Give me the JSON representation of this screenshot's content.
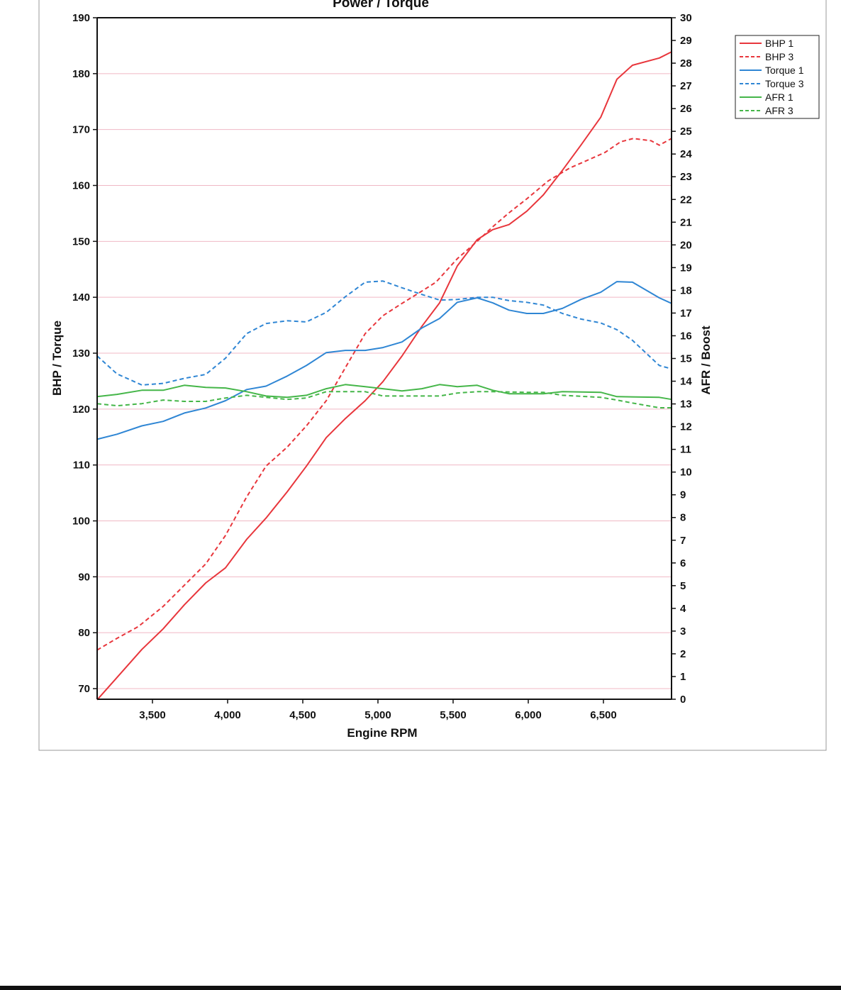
{
  "chart_data": {
    "type": "line",
    "title": "Power / Torque",
    "xlabel": "Engine RPM",
    "ylabel": "BHP / Torque",
    "y2label": "AFR / Boost",
    "xlim": [
      3132,
      6953
    ],
    "ylim": [
      68.1,
      190
    ],
    "y2lim": [
      0,
      30
    ],
    "xticks": [
      3500,
      4000,
      4500,
      5000,
      5500,
      6000,
      6500
    ],
    "xtick_labels": [
      "3,500",
      "4,000",
      "4,500",
      "5,000",
      "5,500",
      "6,000",
      "6,500"
    ],
    "yticks": [
      70,
      80,
      90,
      100,
      110,
      120,
      130,
      140,
      150,
      160,
      170,
      180,
      190
    ],
    "y2ticks": [
      0,
      1,
      2,
      3,
      4,
      5,
      6,
      7,
      8,
      9,
      10,
      11,
      12,
      13,
      14,
      15,
      16,
      17,
      18,
      19,
      20,
      21,
      22,
      23,
      24,
      25,
      26,
      27,
      28,
      29,
      30
    ],
    "grid": true,
    "legend_position": "right",
    "series": [
      {
        "name": "BHP 1",
        "axis": "left",
        "color": "#e8363c",
        "dashed": false,
        "x": [
          3132,
          3264,
          3429,
          3571,
          3712,
          3854,
          3986,
          4127,
          4255,
          4396,
          4524,
          4656,
          4783,
          4915,
          5033,
          5160,
          5292,
          5410,
          5528,
          5660,
          5764,
          5872,
          5990,
          6100,
          6227,
          6350,
          6482,
          6590,
          6693,
          6872,
          6953
        ],
        "y": [
          68.0,
          72.0,
          77.0,
          80.7,
          85.0,
          88.9,
          91.6,
          96.7,
          100.5,
          105.2,
          109.8,
          114.9,
          118.3,
          121.5,
          124.9,
          129.5,
          134.8,
          139.0,
          145.6,
          150.3,
          152.1,
          153.0,
          155.4,
          158.3,
          162.7,
          167.2,
          172.2,
          179.0,
          181.5,
          182.8,
          183.9
        ]
      },
      {
        "name": "BHP 3",
        "axis": "left",
        "color": "#e8363c",
        "dashed": true,
        "x": [
          3132,
          3264,
          3406,
          3571,
          3712,
          3854,
          3986,
          4127,
          4255,
          4396,
          4524,
          4656,
          4783,
          4915,
          5033,
          5160,
          5292,
          5386,
          5528,
          5660,
          5764,
          5872,
          5990,
          6132,
          6274,
          6368,
          6510,
          6614,
          6698,
          6816,
          6872,
          6953
        ],
        "y": [
          76.9,
          79.0,
          81.1,
          84.7,
          88.5,
          92.3,
          97.4,
          104.3,
          109.8,
          113.2,
          117.0,
          121.5,
          127.4,
          133.5,
          136.7,
          138.9,
          141.1,
          142.7,
          146.9,
          150.0,
          152.6,
          155.1,
          157.6,
          160.8,
          163.1,
          164.2,
          165.9,
          167.8,
          168.4,
          168.0,
          167.2,
          168.4
        ]
      },
      {
        "name": "Torque 1",
        "axis": "left",
        "color": "#2f86d4",
        "dashed": false,
        "x": [
          3132,
          3264,
          3429,
          3571,
          3712,
          3854,
          3986,
          4127,
          4255,
          4396,
          4524,
          4656,
          4783,
          4915,
          5033,
          5160,
          5292,
          5410,
          5528,
          5660,
          5764,
          5872,
          5990,
          6100,
          6227,
          6350,
          6482,
          6590,
          6693,
          6872,
          6953
        ],
        "y": [
          114.6,
          115.5,
          117.0,
          117.8,
          119.3,
          120.2,
          121.5,
          123.5,
          124.1,
          125.9,
          127.8,
          130.1,
          130.5,
          130.5,
          131.0,
          132.0,
          134.5,
          136.2,
          139.1,
          139.9,
          139.0,
          137.7,
          137.1,
          137.1,
          138.0,
          139.6,
          140.9,
          142.8,
          142.7,
          139.9,
          138.9
        ]
      },
      {
        "name": "Torque 3",
        "axis": "left",
        "color": "#2f86d4",
        "dashed": true,
        "x": [
          3132,
          3264,
          3429,
          3571,
          3712,
          3854,
          3986,
          4127,
          4255,
          4396,
          4524,
          4656,
          4783,
          4915,
          5033,
          5160,
          5292,
          5410,
          5528,
          5660,
          5764,
          5872,
          5990,
          6100,
          6227,
          6350,
          6482,
          6590,
          6693,
          6872,
          6953
        ],
        "y": [
          129.5,
          126.3,
          124.3,
          124.6,
          125.5,
          126.2,
          129.1,
          133.5,
          135.3,
          135.8,
          135.6,
          137.3,
          140.1,
          142.7,
          142.9,
          141.7,
          140.5,
          139.5,
          139.6,
          140.0,
          140.0,
          139.4,
          139.1,
          138.6,
          137.1,
          136.1,
          135.4,
          134.2,
          132.3,
          127.8,
          127.2
        ]
      },
      {
        "name": "AFR 1",
        "axis": "right",
        "color": "#45b649",
        "dashed": false,
        "x": [
          3132,
          3264,
          3429,
          3571,
          3712,
          3854,
          3986,
          4127,
          4255,
          4396,
          4524,
          4656,
          4783,
          4915,
          5033,
          5160,
          5292,
          5410,
          5528,
          5660,
          5764,
          5872,
          6100,
          6227,
          6482,
          6590,
          6872,
          6953
        ],
        "y": [
          13.32,
          13.42,
          13.6,
          13.6,
          13.82,
          13.73,
          13.7,
          13.54,
          13.35,
          13.29,
          13.38,
          13.67,
          13.85,
          13.76,
          13.67,
          13.57,
          13.67,
          13.85,
          13.76,
          13.82,
          13.6,
          13.45,
          13.45,
          13.54,
          13.51,
          13.32,
          13.29,
          13.2
        ]
      },
      {
        "name": "AFR 3",
        "axis": "right",
        "color": "#45b649",
        "dashed": true,
        "x": [
          3132,
          3264,
          3429,
          3571,
          3712,
          3854,
          3986,
          4127,
          4255,
          4396,
          4524,
          4656,
          4783,
          4915,
          5033,
          5160,
          5410,
          5528,
          5660,
          5764,
          5990,
          6100,
          6227,
          6482,
          6590,
          6693,
          6872,
          6953
        ],
        "y": [
          13.01,
          12.92,
          13.01,
          13.17,
          13.11,
          13.11,
          13.26,
          13.38,
          13.29,
          13.2,
          13.26,
          13.54,
          13.54,
          13.54,
          13.35,
          13.35,
          13.35,
          13.48,
          13.54,
          13.54,
          13.51,
          13.51,
          13.38,
          13.29,
          13.17,
          13.04,
          12.83,
          12.83
        ]
      }
    ]
  }
}
